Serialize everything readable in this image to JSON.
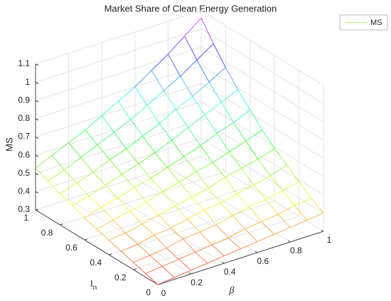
{
  "chart_data": {
    "type": "mesh",
    "title": "Market Share of Clean Energy Generation",
    "xlabel": "β",
    "ylabel": "I",
    "ylabel_sub": "n",
    "zlabel": "MS",
    "series_name": "MS",
    "legend_location": "northeast",
    "legend_color": "#c9f2a6",
    "colormap": "hsv",
    "grid": true,
    "x": [
      0,
      0.1,
      0.2,
      0.3,
      0.4,
      0.5,
      0.6,
      0.7,
      0.8,
      0.9,
      1
    ],
    "y": [
      0,
      0.1,
      0.2,
      0.3,
      0.4,
      0.5,
      0.6,
      0.7,
      0.8,
      0.9,
      1
    ],
    "z": [
      [
        0.3,
        0.31,
        0.32,
        0.33,
        0.34,
        0.35,
        0.36,
        0.37,
        0.38,
        0.39,
        0.4
      ],
      [
        0.32,
        0.33,
        0.34,
        0.35,
        0.36,
        0.37,
        0.39,
        0.4,
        0.41,
        0.43,
        0.44
      ],
      [
        0.34,
        0.35,
        0.36,
        0.38,
        0.39,
        0.4,
        0.42,
        0.44,
        0.45,
        0.47,
        0.49
      ],
      [
        0.36,
        0.37,
        0.39,
        0.4,
        0.42,
        0.44,
        0.45,
        0.47,
        0.49,
        0.51,
        0.54
      ],
      [
        0.38,
        0.39,
        0.41,
        0.43,
        0.45,
        0.47,
        0.49,
        0.52,
        0.54,
        0.56,
        0.59
      ],
      [
        0.4,
        0.42,
        0.44,
        0.46,
        0.49,
        0.51,
        0.54,
        0.56,
        0.59,
        0.62,
        0.65
      ],
      [
        0.42,
        0.45,
        0.47,
        0.5,
        0.52,
        0.55,
        0.58,
        0.61,
        0.65,
        0.68,
        0.72
      ],
      [
        0.45,
        0.47,
        0.5,
        0.53,
        0.56,
        0.59,
        0.63,
        0.67,
        0.71,
        0.75,
        0.79
      ],
      [
        0.47,
        0.5,
        0.53,
        0.57,
        0.6,
        0.64,
        0.68,
        0.73,
        0.77,
        0.82,
        0.87
      ],
      [
        0.5,
        0.53,
        0.57,
        0.61,
        0.65,
        0.69,
        0.74,
        0.79,
        0.84,
        0.9,
        0.96
      ],
      [
        0.53,
        0.57,
        0.61,
        0.65,
        0.7,
        0.75,
        0.8,
        0.86,
        0.92,
        0.99,
        1.06
      ]
    ],
    "xlim": [
      0,
      1
    ],
    "ylim": [
      0,
      1
    ],
    "zlim": [
      0.3,
      1.1
    ],
    "xticks": [
      0,
      0.2,
      0.4,
      0.6,
      0.8,
      1
    ],
    "yticks": [
      0,
      0.2,
      0.4,
      0.6,
      0.8,
      1
    ],
    "zticks": [
      0.3,
      0.4,
      0.5,
      0.6,
      0.7,
      0.8,
      0.9,
      1,
      1.1
    ]
  }
}
